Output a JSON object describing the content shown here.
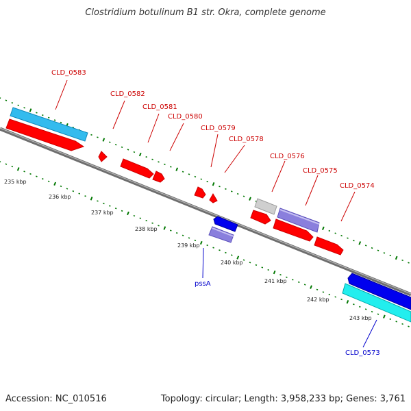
{
  "title": "Clostridium botulinum B1 str. Okra, complete genome",
  "footer": {
    "accession": "Accession: NC_010516",
    "topology": "Topology: circular; Length: 3,958,233 bp; Genes: 3,761"
  },
  "colors": {
    "forward_gene": "#ff0000",
    "reverse_gene": "#0000ee",
    "forward_label": "#cc0000",
    "reverse_label": "#0000cc",
    "backbone": "#808080",
    "ticks": "#007700"
  },
  "scale_labels": [
    "235 kbp",
    "236 kbp",
    "237 kbp",
    "238 kbp",
    "239 kbp",
    "240 kbp",
    "241 kbp",
    "242 kbp",
    "243 kbp"
  ],
  "gene_labels": [
    "CLD_0583",
    "CLD_0582",
    "CLD_0581",
    "CLD_0580",
    "CLD_0579",
    "CLD_0578",
    "CLD_0576",
    "CLD_0575",
    "CLD_0574",
    "pssA",
    "CLD_0573"
  ]
}
